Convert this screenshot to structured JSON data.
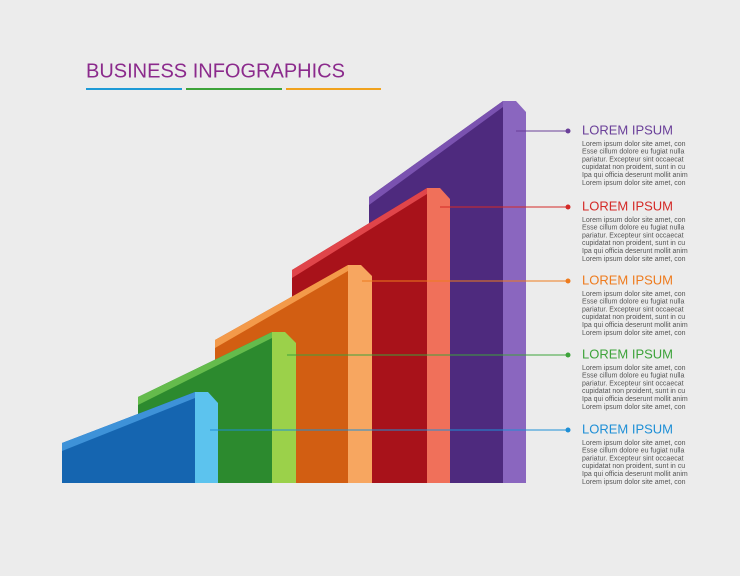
{
  "header": {
    "title": "BUSINESS INFOGRAPHICS"
  },
  "items": [
    {
      "heading": "LOREM IPSUM",
      "color": "#6a3f99",
      "lines": [
        "Lorem ipsum dolor site amet, con",
        "Esse cillum dolore eu fugiat nulla",
        "pariatur. Excepteur sint occaecat",
        "cupidatat non proident, sunt in cu",
        "Ipa qui officia deserunt mollit anim",
        "Lorem ipsum dolor site amet, con"
      ]
    },
    {
      "heading": "LOREM IPSUM",
      "color": "#d42a27",
      "lines": [
        "Lorem ipsum dolor site amet, con",
        "Esse cillum dolore eu fugiat nulla",
        "pariatur. Excepteur sint occaecat",
        "cupidatat non proident, sunt in cu",
        "Ipa qui officia deserunt mollit anim",
        "Lorem ipsum dolor site amet, con"
      ]
    },
    {
      "heading": "LOREM IPSUM",
      "color": "#ee7b1e",
      "lines": [
        "Lorem ipsum dolor site amet, con",
        "Esse cillum dolore eu fugiat nulla",
        "pariatur. Excepteur sint occaecat",
        "cupidatat non proident, sunt in cu",
        "Ipa qui officia deserunt mollit anim",
        "Lorem ipsum dolor site amet, con"
      ]
    },
    {
      "heading": "LOREM IPSUM",
      "color": "#3da33a",
      "lines": [
        "Lorem ipsum dolor site amet, con",
        "Esse cillum dolore eu fugiat nulla",
        "pariatur. Excepteur sint occaecat",
        "cupidatat non proident, sunt in cu",
        "Ipa qui officia deserunt mollit anim",
        "Lorem ipsum dolor site amet, con"
      ]
    },
    {
      "heading": "LOREM IPSUM",
      "color": "#1e8fd6",
      "lines": [
        "Lorem ipsum dolor site amet, con",
        "Esse cillum dolore eu fugiat nulla",
        "pariatur. Excepteur sint occaecat",
        "cupidatat non proident, sunt in cu",
        "Ipa qui officia deserunt mollit anim",
        "Lorem ipsum dolor site amet, con"
      ]
    }
  ]
}
